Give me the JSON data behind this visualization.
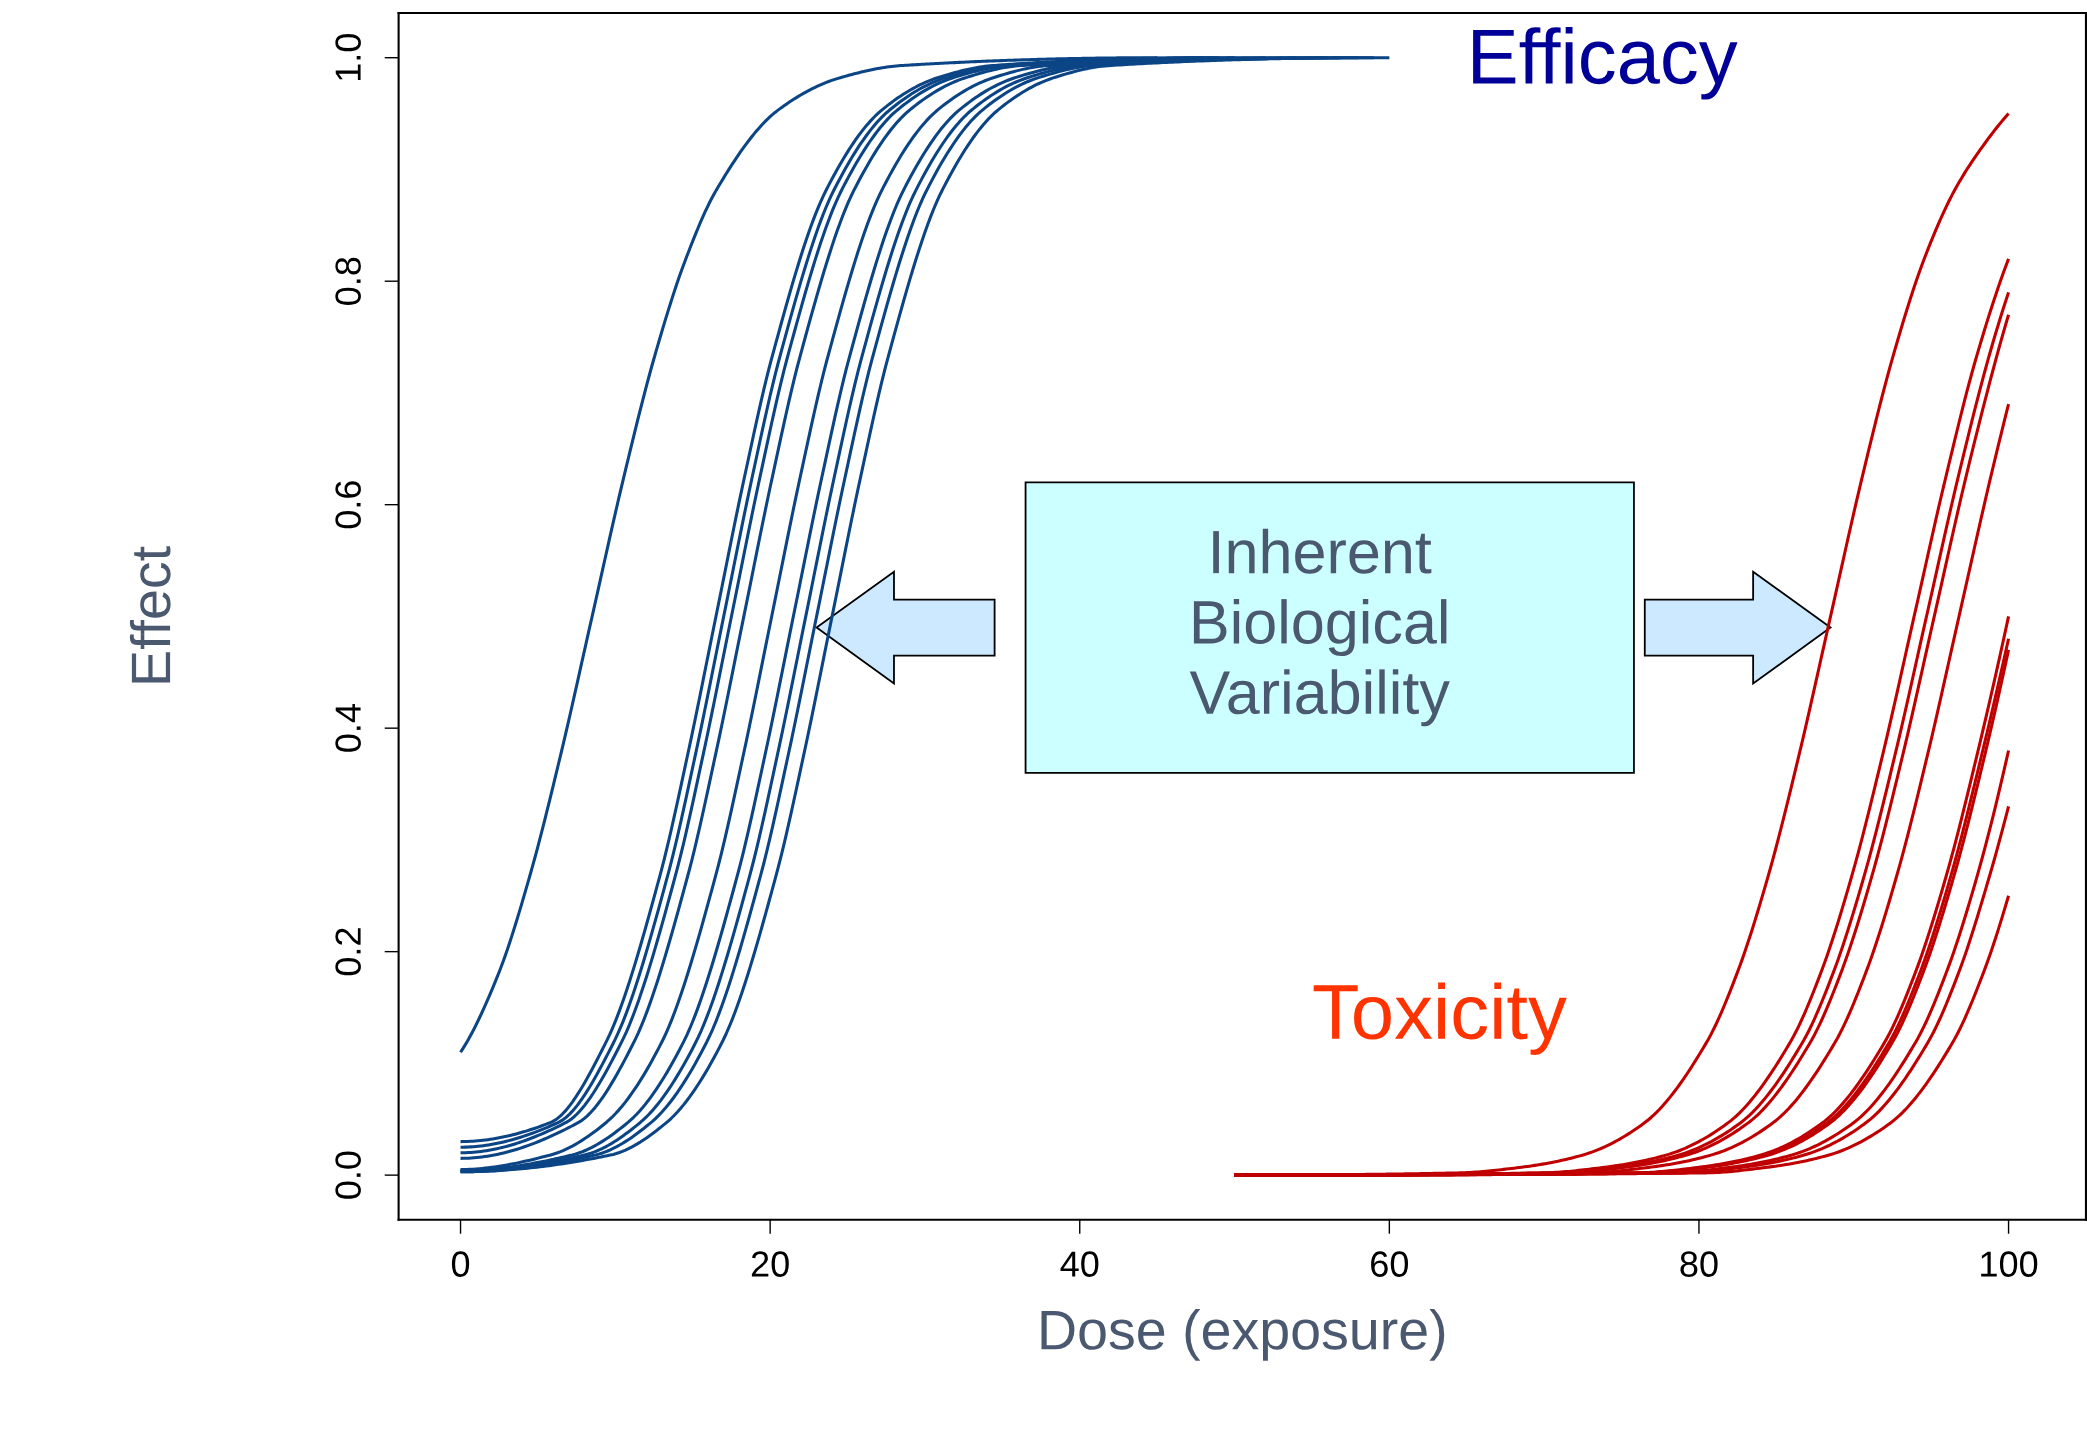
{
  "chart_data": {
    "type": "line",
    "xlabel": "Dose (exposure)",
    "ylabel": "Effect",
    "xlim": [
      -4,
      105
    ],
    "ylim": [
      -0.04,
      1.04
    ],
    "xticks": [
      0,
      20,
      40,
      60,
      80,
      100
    ],
    "yticks": [
      {
        "value": 0,
        "label": "0.0"
      },
      {
        "value": 0.2,
        "label": "0.2"
      },
      {
        "value": 0.4,
        "label": "0.4"
      },
      {
        "value": 0.6,
        "label": "0.6"
      },
      {
        "value": 0.8,
        "label": "0.8"
      },
      {
        "value": 1,
        "label": "1.0"
      }
    ],
    "grid": false,
    "legend": false,
    "marker": "none",
    "line_style": "solid",
    "series": [
      {
        "color": "#0b4585",
        "x": [
          0,
          2.5,
          4.5,
          6.5,
          8.5,
          10.5,
          12.5,
          14.5,
          16.5,
          20.5,
          24.5,
          28.5,
          45
        ],
        "values": [
          0.11,
          0.182,
          0.269,
          0.378,
          0.5,
          0.622,
          0.731,
          0.818,
          0.881,
          0.953,
          0.982,
          0.993,
          1.0
        ]
      },
      {
        "color": "#0b4585",
        "x": [
          0,
          5.8,
          9.4,
          12.9,
          14.7,
          16.5,
          18.3,
          20.1,
          23.6,
          27.2,
          30.8,
          34.4,
          48
        ],
        "values": [
          0.03,
          0.047,
          0.119,
          0.269,
          0.378,
          0.5,
          0.622,
          0.731,
          0.881,
          0.953,
          0.982,
          0.993,
          1.0
        ]
      },
      {
        "color": "#0b4585",
        "x": [
          0,
          6.3,
          9.9,
          13.4,
          15.2,
          17.0,
          18.8,
          20.6,
          24.1,
          27.7,
          31.3,
          34.9,
          49
        ],
        "values": [
          0.025,
          0.047,
          0.119,
          0.269,
          0.378,
          0.5,
          0.622,
          0.731,
          0.881,
          0.953,
          0.982,
          0.993,
          1.0
        ]
      },
      {
        "color": "#0b4585",
        "x": [
          0,
          6.8,
          10.4,
          13.9,
          15.7,
          17.5,
          19.3,
          21.1,
          24.6,
          28.2,
          31.8,
          35.4,
          50
        ],
        "values": [
          0.02,
          0.047,
          0.119,
          0.269,
          0.378,
          0.5,
          0.622,
          0.731,
          0.881,
          0.953,
          0.982,
          0.993,
          1.0
        ]
      },
      {
        "color": "#0b4585",
        "x": [
          0,
          7.6,
          11.2,
          14.7,
          16.5,
          18.3,
          20.1,
          21.9,
          25.4,
          29.0,
          32.6,
          36.2,
          52
        ],
        "values": [
          0.015,
          0.047,
          0.119,
          0.269,
          0.378,
          0.5,
          0.622,
          0.731,
          0.881,
          0.953,
          0.982,
          0.993,
          1.0
        ]
      },
      {
        "color": "#0b4585",
        "x": [
          0,
          7.2,
          10.8,
          14.4,
          17.9,
          19.7,
          21.5,
          23.3,
          25.1,
          28.6,
          32.2,
          35.8,
          39.4,
          54
        ],
        "values": [
          0.004,
          0.018,
          0.047,
          0.119,
          0.269,
          0.378,
          0.5,
          0.622,
          0.731,
          0.881,
          0.953,
          0.982,
          0.993,
          1.0
        ]
      },
      {
        "color": "#0b4585",
        "x": [
          0,
          8.0,
          11.6,
          15.2,
          18.7,
          20.5,
          22.3,
          24.1,
          25.9,
          29.4,
          33.0,
          36.6,
          40.2,
          56
        ],
        "values": [
          0.004,
          0.018,
          0.047,
          0.119,
          0.269,
          0.378,
          0.5,
          0.622,
          0.731,
          0.881,
          0.953,
          0.982,
          0.993,
          1.0
        ]
      },
      {
        "color": "#0b4585",
        "x": [
          0,
          8.7,
          12.3,
          15.9,
          19.4,
          21.2,
          23.0,
          24.8,
          26.6,
          30.1,
          33.7,
          37.3,
          40.9,
          58
        ],
        "values": [
          0.003,
          0.018,
          0.047,
          0.119,
          0.269,
          0.378,
          0.5,
          0.622,
          0.731,
          0.881,
          0.953,
          0.982,
          0.993,
          1.0
        ]
      },
      {
        "color": "#0b4585",
        "x": [
          0,
          9.7,
          13.3,
          16.9,
          20.4,
          22.2,
          24.0,
          25.8,
          27.6,
          31.1,
          34.7,
          38.3,
          41.9,
          59
        ],
        "values": [
          0.003,
          0.018,
          0.047,
          0.119,
          0.269,
          0.378,
          0.5,
          0.622,
          0.731,
          0.881,
          0.953,
          0.982,
          0.993,
          1.0
        ]
      },
      {
        "color": "#0b4585",
        "x": [
          0,
          5.8,
          9.4,
          13.0,
          16.5,
          18.3,
          20.1,
          21.9,
          23.7,
          27.2,
          30.8,
          34.4,
          38.0,
          60
        ],
        "values": [
          0.005,
          0.018,
          0.047,
          0.119,
          0.269,
          0.378,
          0.5,
          0.622,
          0.731,
          0.881,
          0.953,
          0.982,
          0.993,
          1.0
        ]
      },
      {
        "color": "#c00000",
        "x": [
          50,
          64.5,
          68.5,
          72.5,
          76.5,
          80.5,
          82.5,
          84.5,
          86.5,
          88.5,
          90.5,
          92.5,
          94.5,
          96.5,
          98.5,
          100
        ],
        "values": [
          0,
          0.002,
          0.007,
          0.018,
          0.047,
          0.119,
          0.182,
          0.269,
          0.378,
          0.5,
          0.622,
          0.731,
          0.818,
          0.881,
          0.924,
          0.95
        ]
      },
      {
        "color": "#c00000",
        "x": [
          50,
          69.9,
          73.9,
          77.9,
          81.9,
          85.9,
          87.9,
          89.9,
          91.9,
          93.9,
          95.9,
          97.9,
          100
        ],
        "values": [
          0,
          0.002,
          0.007,
          0.018,
          0.047,
          0.119,
          0.182,
          0.269,
          0.378,
          0.5,
          0.622,
          0.731,
          0.82
        ]
      },
      {
        "color": "#c00000",
        "x": [
          50,
          70.7,
          74.7,
          78.7,
          82.7,
          86.7,
          88.7,
          90.7,
          92.7,
          94.7,
          96.7,
          98.7,
          100
        ],
        "values": [
          0,
          0.002,
          0.007,
          0.018,
          0.047,
          0.119,
          0.182,
          0.269,
          0.378,
          0.5,
          0.622,
          0.731,
          0.79
        ]
      },
      {
        "color": "#c00000",
        "x": [
          50,
          71.2,
          75.2,
          79.2,
          83.2,
          87.2,
          89.2,
          91.2,
          93.2,
          95.2,
          97.2,
          99.2,
          100
        ],
        "values": [
          0,
          0.002,
          0.007,
          0.018,
          0.047,
          0.119,
          0.182,
          0.269,
          0.378,
          0.5,
          0.622,
          0.731,
          0.77
        ]
      },
      {
        "color": "#c00000",
        "x": [
          50,
          72.8,
          76.8,
          80.8,
          84.8,
          88.8,
          90.8,
          92.8,
          94.8,
          96.8,
          98.8,
          100
        ],
        "values": [
          0,
          0.002,
          0.007,
          0.018,
          0.047,
          0.119,
          0.182,
          0.269,
          0.378,
          0.5,
          0.622,
          0.69
        ]
      },
      {
        "color": "#c00000",
        "x": [
          50,
          76.3,
          80.3,
          84.3,
          88.3,
          92.3,
          94.3,
          96.3,
          98.3,
          100
        ],
        "values": [
          0,
          0.002,
          0.007,
          0.018,
          0.047,
          0.119,
          0.182,
          0.269,
          0.378,
          0.48
        ]
      },
      {
        "color": "#c00000",
        "x": [
          50,
          76.5,
          80.5,
          84.5,
          88.5,
          92.5,
          94.5,
          96.5,
          98.5,
          100
        ],
        "values": [
          0,
          0.002,
          0.007,
          0.018,
          0.047,
          0.119,
          0.182,
          0.269,
          0.378,
          0.47
        ]
      },
      {
        "color": "#c00000",
        "x": [
          50,
          78,
          82,
          86,
          90,
          94,
          96,
          98,
          100
        ],
        "values": [
          0,
          0.002,
          0.007,
          0.018,
          0.047,
          0.119,
          0.182,
          0.269,
          0.38
        ]
      },
      {
        "color": "#c00000",
        "x": [
          50,
          78.8,
          82.8,
          86.8,
          90.8,
          94.8,
          96.8,
          98.8,
          100
        ],
        "values": [
          0,
          0.002,
          0.007,
          0.018,
          0.047,
          0.119,
          0.182,
          0.269,
          0.33
        ]
      },
      {
        "color": "#c00000",
        "x": [
          50,
          80.4,
          84.4,
          88.4,
          92.4,
          96.4,
          98.4,
          100
        ],
        "values": [
          0,
          0.002,
          0.007,
          0.018,
          0.047,
          0.119,
          0.182,
          0.25
        ]
      },
      {
        "color": "#c00000",
        "x": [
          50,
          76,
          80,
          84,
          88,
          92,
          94,
          96,
          98,
          100
        ],
        "values": [
          0,
          0.002,
          0.007,
          0.018,
          0.047,
          0.119,
          0.182,
          0.269,
          0.378,
          0.5
        ]
      }
    ],
    "annotations": [
      "Efficacy",
      "Toxicity",
      "Inherent\nBiological\nVariability"
    ]
  }
}
